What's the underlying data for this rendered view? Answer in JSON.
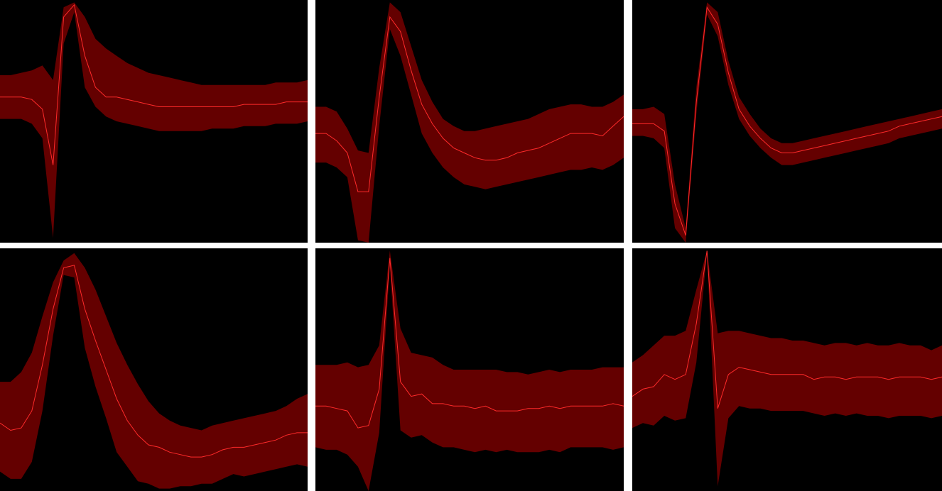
{
  "colors": {
    "band": "#640000",
    "mean": "#ff2a2a",
    "background": "#000000",
    "gutter": "#ffffff"
  },
  "chart_data": [
    {
      "type": "area",
      "x": [
        0,
        1,
        2,
        3,
        4,
        5,
        6,
        7,
        8,
        9,
        10,
        11,
        12,
        13,
        14,
        15,
        16,
        17,
        18,
        19,
        20,
        21,
        22,
        23,
        24,
        25,
        26,
        27,
        28,
        29
      ],
      "ylim": [
        0,
        1
      ],
      "series": [
        {
          "values": [
            0.6,
            0.6,
            0.6,
            0.59,
            0.55,
            0.32,
            0.93,
            0.98,
            0.77,
            0.64,
            0.6,
            0.6,
            0.59,
            0.58,
            0.57,
            0.56,
            0.56,
            0.56,
            0.56,
            0.56,
            0.56,
            0.56,
            0.56,
            0.57,
            0.57,
            0.57,
            0.57,
            0.58,
            0.58,
            0.58
          ]
        },
        {
          "values": [
            0.69,
            0.69,
            0.7,
            0.71,
            0.73,
            0.67,
            0.97,
            0.99,
            0.93,
            0.84,
            0.8,
            0.77,
            0.74,
            0.72,
            0.7,
            0.69,
            0.68,
            0.67,
            0.66,
            0.65,
            0.65,
            0.65,
            0.65,
            0.65,
            0.65,
            0.65,
            0.66,
            0.66,
            0.66,
            0.67
          ]
        },
        {
          "values": [
            0.51,
            0.51,
            0.51,
            0.49,
            0.43,
            0.02,
            0.82,
            0.95,
            0.64,
            0.56,
            0.52,
            0.5,
            0.49,
            0.48,
            0.47,
            0.46,
            0.46,
            0.46,
            0.46,
            0.46,
            0.47,
            0.47,
            0.47,
            0.48,
            0.48,
            0.48,
            0.49,
            0.49,
            0.49,
            0.5
          ]
        }
      ]
    },
    {
      "type": "area",
      "x": [
        0,
        1,
        2,
        3,
        4,
        5,
        6,
        7,
        8,
        9,
        10,
        11,
        12,
        13,
        14,
        15,
        16,
        17,
        18,
        19,
        20,
        21,
        22,
        23,
        24,
        25,
        26,
        27,
        28,
        29
      ],
      "ylim": [
        0,
        1
      ],
      "series": [
        {
          "values": [
            0.45,
            0.45,
            0.42,
            0.37,
            0.21,
            0.21,
            0.6,
            0.93,
            0.87,
            0.71,
            0.57,
            0.49,
            0.43,
            0.39,
            0.37,
            0.35,
            0.34,
            0.34,
            0.35,
            0.37,
            0.38,
            0.39,
            0.41,
            0.43,
            0.45,
            0.45,
            0.45,
            0.44,
            0.48,
            0.52
          ]
        },
        {
          "values": [
            0.56,
            0.56,
            0.54,
            0.47,
            0.38,
            0.37,
            0.72,
            0.99,
            0.95,
            0.81,
            0.67,
            0.58,
            0.51,
            0.48,
            0.46,
            0.46,
            0.47,
            0.48,
            0.49,
            0.5,
            0.51,
            0.53,
            0.55,
            0.56,
            0.57,
            0.57,
            0.56,
            0.56,
            0.58,
            0.61
          ]
        },
        {
          "values": [
            0.33,
            0.33,
            0.31,
            0.27,
            0.01,
            0.0,
            0.48,
            0.88,
            0.77,
            0.61,
            0.45,
            0.37,
            0.31,
            0.27,
            0.24,
            0.23,
            0.22,
            0.23,
            0.24,
            0.25,
            0.26,
            0.27,
            0.28,
            0.29,
            0.3,
            0.3,
            0.31,
            0.3,
            0.32,
            0.35
          ]
        }
      ]
    },
    {
      "type": "area",
      "x": [
        0,
        1,
        2,
        3,
        4,
        5,
        6,
        7,
        8,
        9,
        10,
        11,
        12,
        13,
        14,
        15,
        16,
        17,
        18,
        19,
        20,
        21,
        22,
        23,
        24,
        25,
        26,
        27,
        28,
        29
      ],
      "ylim": [
        0,
        1
      ],
      "series": [
        {
          "values": [
            0.49,
            0.49,
            0.49,
            0.46,
            0.16,
            0.03,
            0.58,
            0.97,
            0.9,
            0.7,
            0.55,
            0.48,
            0.43,
            0.39,
            0.37,
            0.37,
            0.38,
            0.39,
            0.4,
            0.41,
            0.42,
            0.43,
            0.44,
            0.45,
            0.46,
            0.48,
            0.49,
            0.5,
            0.51,
            0.52
          ]
        },
        {
          "values": [
            0.55,
            0.55,
            0.56,
            0.53,
            0.24,
            0.06,
            0.64,
            0.99,
            0.95,
            0.75,
            0.6,
            0.53,
            0.47,
            0.43,
            0.41,
            0.41,
            0.42,
            0.43,
            0.44,
            0.45,
            0.46,
            0.47,
            0.48,
            0.49,
            0.5,
            0.51,
            0.52,
            0.53,
            0.54,
            0.55
          ]
        },
        {
          "values": [
            0.44,
            0.44,
            0.43,
            0.39,
            0.06,
            0.0,
            0.53,
            0.94,
            0.85,
            0.65,
            0.51,
            0.44,
            0.39,
            0.35,
            0.32,
            0.32,
            0.33,
            0.34,
            0.35,
            0.36,
            0.37,
            0.38,
            0.39,
            0.4,
            0.41,
            0.43,
            0.44,
            0.45,
            0.46,
            0.47
          ]
        }
      ]
    },
    {
      "type": "area",
      "x": [
        0,
        1,
        2,
        3,
        4,
        5,
        6,
        7,
        8,
        9,
        10,
        11,
        12,
        13,
        14,
        15,
        16,
        17,
        18,
        19,
        20,
        21,
        22,
        23,
        24,
        25,
        26,
        27,
        28,
        29
      ],
      "ylim": [
        0,
        1
      ],
      "series": [
        {
          "values": [
            0.28,
            0.25,
            0.26,
            0.33,
            0.52,
            0.75,
            0.92,
            0.93,
            0.75,
            0.62,
            0.5,
            0.38,
            0.29,
            0.23,
            0.19,
            0.18,
            0.16,
            0.15,
            0.14,
            0.14,
            0.15,
            0.17,
            0.18,
            0.18,
            0.19,
            0.2,
            0.21,
            0.23,
            0.24,
            0.24
          ]
        },
        {
          "values": [
            0.45,
            0.45,
            0.49,
            0.57,
            0.72,
            0.86,
            0.95,
            0.98,
            0.92,
            0.83,
            0.72,
            0.61,
            0.52,
            0.44,
            0.37,
            0.32,
            0.29,
            0.27,
            0.26,
            0.25,
            0.27,
            0.28,
            0.29,
            0.3,
            0.31,
            0.32,
            0.33,
            0.35,
            0.38,
            0.4
          ]
        },
        {
          "values": [
            0.08,
            0.05,
            0.05,
            0.12,
            0.33,
            0.64,
            0.89,
            0.88,
            0.59,
            0.43,
            0.3,
            0.16,
            0.1,
            0.04,
            0.03,
            0.01,
            0.01,
            0.02,
            0.02,
            0.03,
            0.03,
            0.05,
            0.07,
            0.06,
            0.07,
            0.08,
            0.09,
            0.1,
            0.11,
            0.1
          ]
        }
      ]
    },
    {
      "type": "area",
      "x": [
        0,
        1,
        2,
        3,
        4,
        5,
        6,
        7,
        8,
        9,
        10,
        11,
        12,
        13,
        14,
        15,
        16,
        17,
        18,
        19,
        20,
        21,
        22,
        23,
        24,
        25,
        26,
        27,
        28,
        29
      ],
      "ylim": [
        0,
        1
      ],
      "series": [
        {
          "values": [
            0.35,
            0.35,
            0.34,
            0.33,
            0.26,
            0.27,
            0.42,
            0.96,
            0.45,
            0.39,
            0.4,
            0.36,
            0.36,
            0.35,
            0.35,
            0.34,
            0.35,
            0.33,
            0.33,
            0.33,
            0.34,
            0.34,
            0.35,
            0.34,
            0.35,
            0.35,
            0.35,
            0.35,
            0.36,
            0.35
          ]
        },
        {
          "values": [
            0.52,
            0.52,
            0.52,
            0.53,
            0.51,
            0.52,
            0.6,
            0.99,
            0.67,
            0.57,
            0.56,
            0.55,
            0.52,
            0.5,
            0.5,
            0.5,
            0.5,
            0.5,
            0.49,
            0.49,
            0.48,
            0.49,
            0.5,
            0.49,
            0.5,
            0.5,
            0.5,
            0.51,
            0.51,
            0.51
          ]
        },
        {
          "values": [
            0.18,
            0.17,
            0.17,
            0.15,
            0.1,
            0.0,
            0.24,
            0.93,
            0.25,
            0.22,
            0.23,
            0.2,
            0.18,
            0.18,
            0.17,
            0.16,
            0.17,
            0.16,
            0.17,
            0.16,
            0.16,
            0.16,
            0.17,
            0.16,
            0.18,
            0.18,
            0.18,
            0.18,
            0.17,
            0.18
          ]
        }
      ]
    },
    {
      "type": "area",
      "x": [
        0,
        1,
        2,
        3,
        4,
        5,
        6,
        7,
        8,
        9,
        10,
        11,
        12,
        13,
        14,
        15,
        16,
        17,
        18,
        19,
        20,
        21,
        22,
        23,
        24,
        25,
        26,
        27,
        28,
        29
      ],
      "ylim": [
        0,
        1
      ],
      "series": [
        {
          "values": [
            0.39,
            0.42,
            0.43,
            0.48,
            0.46,
            0.48,
            0.69,
            0.99,
            0.34,
            0.48,
            0.51,
            0.5,
            0.49,
            0.48,
            0.48,
            0.48,
            0.48,
            0.46,
            0.47,
            0.47,
            0.46,
            0.47,
            0.47,
            0.47,
            0.46,
            0.47,
            0.47,
            0.47,
            0.46,
            0.47
          ]
        },
        {
          "values": [
            0.53,
            0.56,
            0.6,
            0.64,
            0.64,
            0.66,
            0.83,
            0.99,
            0.65,
            0.66,
            0.66,
            0.65,
            0.64,
            0.63,
            0.63,
            0.62,
            0.62,
            0.61,
            0.6,
            0.61,
            0.61,
            0.6,
            0.61,
            0.6,
            0.6,
            0.61,
            0.6,
            0.6,
            0.58,
            0.6
          ]
        },
        {
          "values": [
            0.26,
            0.28,
            0.27,
            0.31,
            0.29,
            0.3,
            0.53,
            0.98,
            0.02,
            0.3,
            0.35,
            0.34,
            0.34,
            0.33,
            0.33,
            0.33,
            0.33,
            0.32,
            0.31,
            0.32,
            0.31,
            0.32,
            0.31,
            0.31,
            0.3,
            0.31,
            0.31,
            0.31,
            0.3,
            0.31
          ]
        }
      ]
    }
  ]
}
